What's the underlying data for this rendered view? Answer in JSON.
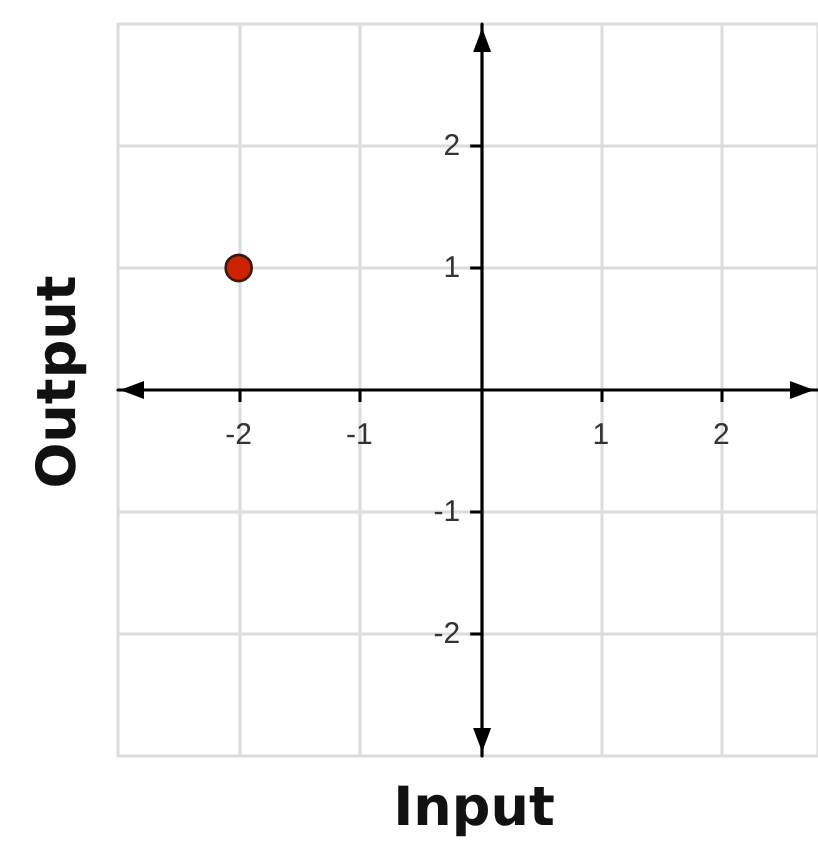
{
  "chart_data": {
    "type": "scatter",
    "xlabel": "Input",
    "ylabel": "Output",
    "x": [
      -2
    ],
    "values": [
      1
    ],
    "color": "#cc2200",
    "xlim": [
      -3,
      2.8
    ],
    "ylim": [
      -3,
      3
    ],
    "xticks": [
      -2,
      -1,
      1,
      2
    ],
    "yticks": [
      -2,
      -1,
      1,
      2
    ],
    "grid": true,
    "marker": "circle"
  }
}
